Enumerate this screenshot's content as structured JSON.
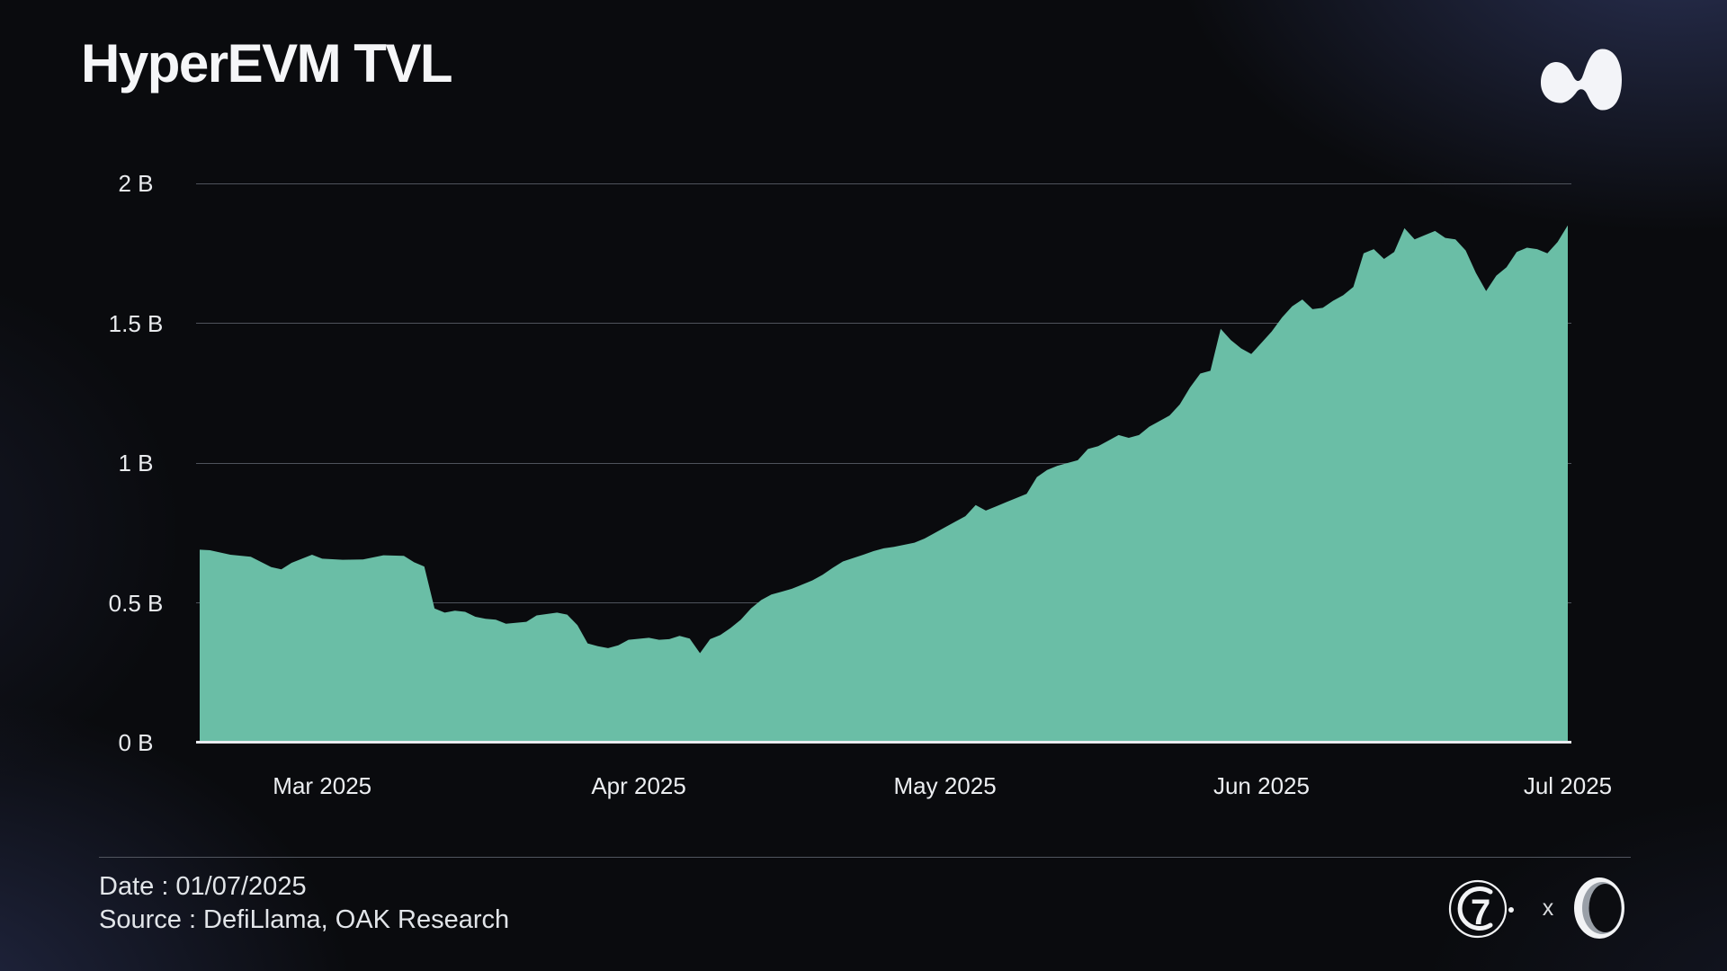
{
  "title": "HyperEVM TVL",
  "header": {
    "logo_name": "hyperliquid-blob-logo"
  },
  "footer": {
    "date_label": "Date : 01/07/2025",
    "source_label": "Source : DefiLlama, OAK Research",
    "collab_x": "x",
    "logo_names": [
      "g7-circle-logo",
      "oak-ring-logo"
    ]
  },
  "colors": {
    "area_fill": "#6abea6",
    "gridline": "#4f535c",
    "baseline": "#e9ebef",
    "background": "#0a0b0e",
    "corner_glow": "#2a3154",
    "text": "#eceef1"
  },
  "chart_data": {
    "type": "area",
    "title": "HyperEVM TVL",
    "series_name": "HyperEVM TVL (USD)",
    "xlabel": "",
    "ylabel": "",
    "unit": "B = billions USD",
    "ylim": [
      0,
      2
    ],
    "grid": "horizontal",
    "legend": "none",
    "x_start_date": "2025-02-17",
    "x_end_date": "2025-07-01",
    "y_ticks": [
      {
        "label": "0 B",
        "value": 0
      },
      {
        "label": "0.5 B",
        "value": 0.5
      },
      {
        "label": "1 B",
        "value": 1
      },
      {
        "label": "1.5 B",
        "value": 1.5
      },
      {
        "label": "2 B",
        "value": 2
      }
    ],
    "x_ticks": [
      {
        "label": "Mar 2025",
        "day": 12
      },
      {
        "label": "Apr 2025",
        "day": 43
      },
      {
        "label": "May 2025",
        "day": 73
      },
      {
        "label": "Jun 2025",
        "day": 104
      },
      {
        "label": "Jul 2025",
        "day": 134
      }
    ],
    "points_format": "[day_offset_from_2025-02-17, TVL_in_billions]",
    "points": [
      [
        0,
        0.69
      ],
      [
        1,
        0.688
      ],
      [
        3,
        0.672
      ],
      [
        5,
        0.665
      ],
      [
        7,
        0.628
      ],
      [
        8,
        0.62
      ],
      [
        9,
        0.643
      ],
      [
        11,
        0.672
      ],
      [
        12,
        0.658
      ],
      [
        14,
        0.654
      ],
      [
        16,
        0.655
      ],
      [
        18,
        0.67
      ],
      [
        20,
        0.668
      ],
      [
        21,
        0.645
      ],
      [
        22,
        0.63
      ],
      [
        23,
        0.48
      ],
      [
        24,
        0.465
      ],
      [
        25,
        0.472
      ],
      [
        26,
        0.468
      ],
      [
        27,
        0.45
      ],
      [
        28,
        0.443
      ],
      [
        29,
        0.44
      ],
      [
        30,
        0.425
      ],
      [
        32,
        0.432
      ],
      [
        33,
        0.455
      ],
      [
        35,
        0.465
      ],
      [
        36,
        0.458
      ],
      [
        37,
        0.42
      ],
      [
        38,
        0.355
      ],
      [
        39,
        0.345
      ],
      [
        40,
        0.338
      ],
      [
        41,
        0.348
      ],
      [
        42,
        0.368
      ],
      [
        44,
        0.375
      ],
      [
        45,
        0.368
      ],
      [
        46,
        0.37
      ],
      [
        47,
        0.382
      ],
      [
        48,
        0.372
      ],
      [
        49,
        0.32
      ],
      [
        50,
        0.37
      ],
      [
        51,
        0.385
      ],
      [
        52,
        0.41
      ],
      [
        53,
        0.44
      ],
      [
        54,
        0.48
      ],
      [
        55,
        0.51
      ],
      [
        56,
        0.53
      ],
      [
        57,
        0.54
      ],
      [
        58,
        0.55
      ],
      [
        59,
        0.565
      ],
      [
        60,
        0.58
      ],
      [
        61,
        0.6
      ],
      [
        62,
        0.625
      ],
      [
        63,
        0.648
      ],
      [
        64,
        0.66
      ],
      [
        65,
        0.672
      ],
      [
        66,
        0.685
      ],
      [
        67,
        0.695
      ],
      [
        68,
        0.7
      ],
      [
        70,
        0.715
      ],
      [
        71,
        0.73
      ],
      [
        72,
        0.75
      ],
      [
        73,
        0.77
      ],
      [
        74,
        0.79
      ],
      [
        75,
        0.81
      ],
      [
        76,
        0.85
      ],
      [
        77,
        0.83
      ],
      [
        78,
        0.845
      ],
      [
        79,
        0.86
      ],
      [
        80,
        0.875
      ],
      [
        81,
        0.89
      ],
      [
        82,
        0.95
      ],
      [
        83,
        0.975
      ],
      [
        84,
        0.99
      ],
      [
        85,
        1.0
      ],
      [
        86,
        1.01
      ],
      [
        87,
        1.05
      ],
      [
        88,
        1.06
      ],
      [
        89,
        1.08
      ],
      [
        90,
        1.1
      ],
      [
        91,
        1.09
      ],
      [
        92,
        1.1
      ],
      [
        93,
        1.13
      ],
      [
        94,
        1.15
      ],
      [
        95,
        1.17
      ],
      [
        96,
        1.21
      ],
      [
        97,
        1.27
      ],
      [
        98,
        1.32
      ],
      [
        99,
        1.33
      ],
      [
        100,
        1.48
      ],
      [
        101,
        1.44
      ],
      [
        102,
        1.41
      ],
      [
        103,
        1.39
      ],
      [
        104,
        1.43
      ],
      [
        105,
        1.47
      ],
      [
        106,
        1.52
      ],
      [
        107,
        1.56
      ],
      [
        108,
        1.585
      ],
      [
        109,
        1.55
      ],
      [
        110,
        1.555
      ],
      [
        111,
        1.58
      ],
      [
        112,
        1.6
      ],
      [
        113,
        1.63
      ],
      [
        114,
        1.75
      ],
      [
        115,
        1.765
      ],
      [
        116,
        1.73
      ],
      [
        117,
        1.755
      ],
      [
        118,
        1.84
      ],
      [
        119,
        1.8
      ],
      [
        120,
        1.815
      ],
      [
        121,
        1.83
      ],
      [
        122,
        1.805
      ],
      [
        123,
        1.8
      ],
      [
        124,
        1.76
      ],
      [
        125,
        1.68
      ],
      [
        126,
        1.615
      ],
      [
        127,
        1.67
      ],
      [
        128,
        1.7
      ],
      [
        129,
        1.755
      ],
      [
        130,
        1.77
      ],
      [
        131,
        1.765
      ],
      [
        132,
        1.75
      ],
      [
        133,
        1.79
      ],
      [
        134,
        1.85
      ]
    ]
  }
}
